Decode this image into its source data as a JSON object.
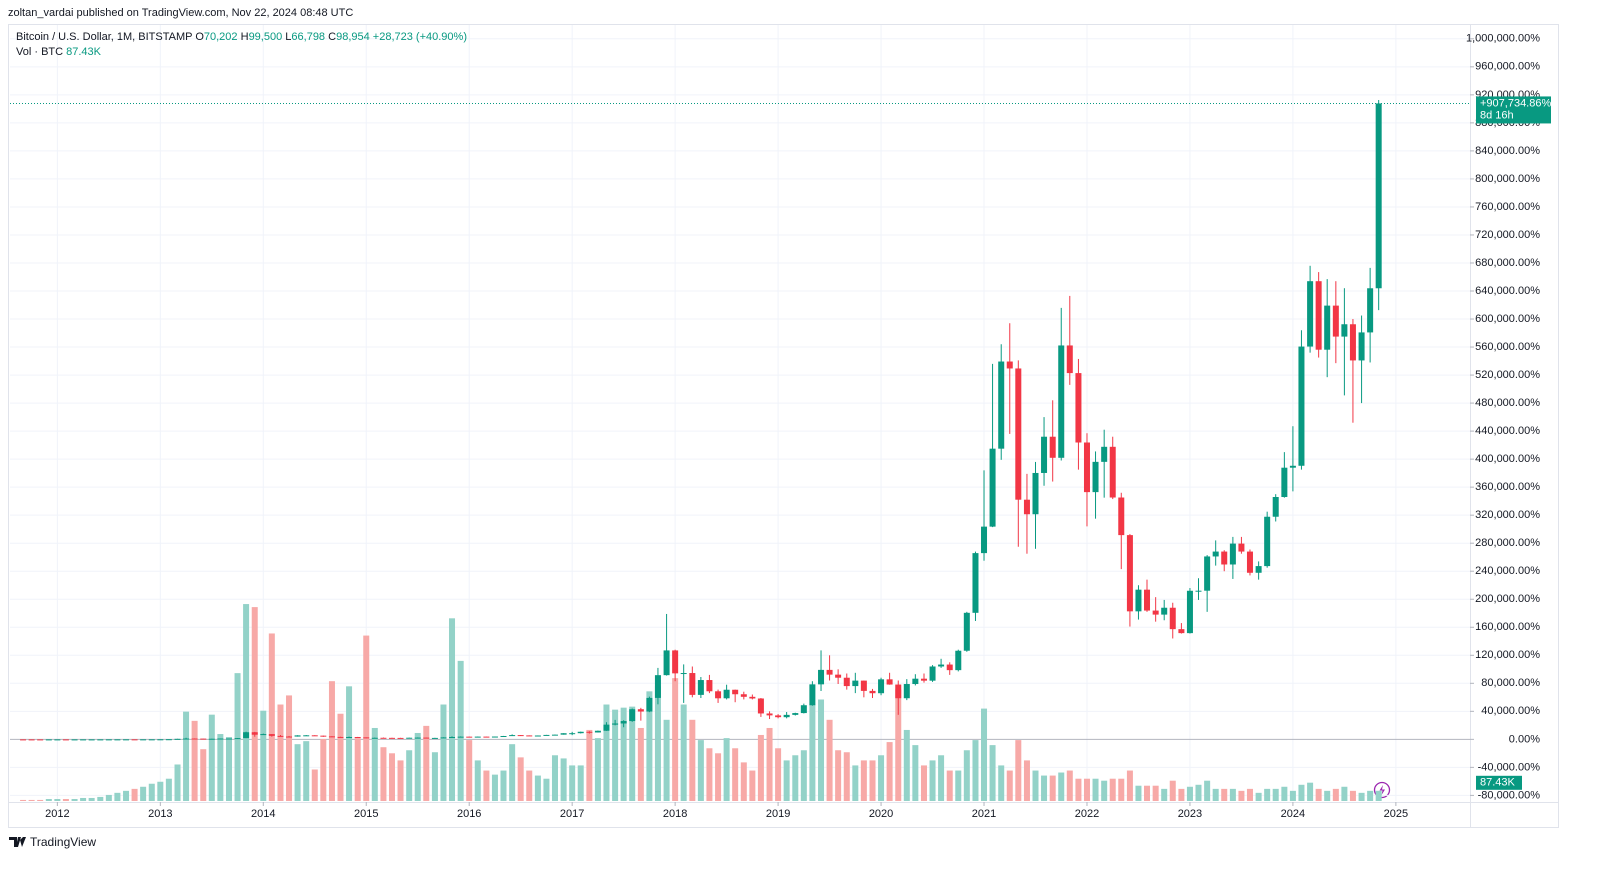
{
  "header": {
    "publisher": "zoltan_vardai published on TradingView.com, Nov 22, 2024 08:48 UTC",
    "symbol": "Bitcoin / U.S. Dollar, 1M, BITSTAMP",
    "ohlc": [
      {
        "key": "O",
        "value": "70,202"
      },
      {
        "key": "H",
        "value": "99,500"
      },
      {
        "key": "L",
        "value": "66,798"
      },
      {
        "key": "C",
        "value": "98,954"
      }
    ],
    "change": "+28,723 (+40.90%)",
    "volume_title": "Vol · BTC",
    "volume_value": "87.43K"
  },
  "footer": {
    "brand": "TradingView"
  },
  "chart_data": {
    "type": "candlestick",
    "up_color": "#089981",
    "down_color": "#f23645",
    "up_volume_color": "#93d2c8",
    "down_volume_color": "#f7a9a7",
    "grid": true,
    "xlim": [
      2011.54,
      2025.72
    ],
    "xticks": [
      2012,
      2013,
      2014,
      2015,
      2016,
      2017,
      2018,
      2019,
      2020,
      2021,
      2022,
      2023,
      2024,
      2025
    ],
    "ylim": [
      -88000,
      1014000
    ],
    "yticks": [
      {
        "value": -80000,
        "label": "-80,000.00%"
      },
      {
        "value": -40000,
        "label": "-40,000.00%"
      },
      {
        "value": 0,
        "label": "0.00%"
      },
      {
        "value": 40000,
        "label": "40,000.00%"
      },
      {
        "value": 80000,
        "label": "80,000.00%"
      },
      {
        "value": 120000,
        "label": "120,000.00%"
      },
      {
        "value": 160000,
        "label": "160,000.00%"
      },
      {
        "value": 200000,
        "label": "200,000.00%"
      },
      {
        "value": 240000,
        "label": "240,000.00%"
      },
      {
        "value": 280000,
        "label": "280,000.00%"
      },
      {
        "value": 320000,
        "label": "320,000.00%"
      },
      {
        "value": 360000,
        "label": "360,000.00%"
      },
      {
        "value": 400000,
        "label": "400,000.00%"
      },
      {
        "value": 440000,
        "label": "440,000.00%"
      },
      {
        "value": 480000,
        "label": "480,000.00%"
      },
      {
        "value": 520000,
        "label": "520,000.00%"
      },
      {
        "value": 560000,
        "label": "560,000.00%"
      },
      {
        "value": 600000,
        "label": "600,000.00%"
      },
      {
        "value": 640000,
        "label": "640,000.00%"
      },
      {
        "value": 680000,
        "label": "680,000.00%"
      },
      {
        "value": 720000,
        "label": "720,000.00%"
      },
      {
        "value": 760000,
        "label": "760,000.00%"
      },
      {
        "value": 800000,
        "label": "800,000.00%"
      },
      {
        "value": 840000,
        "label": "840,000.00%"
      },
      {
        "value": 880000,
        "label": "880,000.00%"
      },
      {
        "value": 920000,
        "label": "920,000.00%"
      },
      {
        "value": 960000,
        "label": "960,000.00%"
      },
      {
        "value": 1000000,
        "label": "1,000,000.00%"
      }
    ],
    "volume_ylim": [
      0,
      1800
    ],
    "last_close_label": "+907,734.86%",
    "countdown": "8d 16h",
    "last_volume_label": "87.43K",
    "x": [
      2011.667,
      2011.75,
      2011.833,
      2011.917,
      2012,
      2012.083,
      2012.167,
      2012.25,
      2012.333,
      2012.417,
      2012.5,
      2012.583,
      2012.667,
      2012.75,
      2012.833,
      2012.917,
      2013,
      2013.083,
      2013.167,
      2013.25,
      2013.333,
      2013.417,
      2013.5,
      2013.583,
      2013.667,
      2013.75,
      2013.833,
      2013.917,
      2014,
      2014.083,
      2014.167,
      2014.25,
      2014.333,
      2014.417,
      2014.5,
      2014.583,
      2014.667,
      2014.75,
      2014.833,
      2014.917,
      2015,
      2015.083,
      2015.167,
      2015.25,
      2015.333,
      2015.417,
      2015.5,
      2015.583,
      2015.667,
      2015.75,
      2015.833,
      2015.917,
      2016,
      2016.083,
      2016.167,
      2016.25,
      2016.333,
      2016.417,
      2016.5,
      2016.583,
      2016.667,
      2016.75,
      2016.833,
      2016.917,
      2017,
      2017.083,
      2017.167,
      2017.25,
      2017.333,
      2017.417,
      2017.5,
      2017.583,
      2017.667,
      2017.75,
      2017.833,
      2017.917,
      2018,
      2018.083,
      2018.167,
      2018.25,
      2018.333,
      2018.417,
      2018.5,
      2018.583,
      2018.667,
      2018.75,
      2018.833,
      2018.917,
      2019,
      2019.083,
      2019.167,
      2019.25,
      2019.333,
      2019.417,
      2019.5,
      2019.583,
      2019.667,
      2019.75,
      2019.833,
      2019.917,
      2020,
      2020.083,
      2020.167,
      2020.25,
      2020.333,
      2020.417,
      2020.5,
      2020.583,
      2020.667,
      2020.75,
      2020.833,
      2020.917,
      2021,
      2021.083,
      2021.167,
      2021.25,
      2021.333,
      2021.417,
      2021.5,
      2021.583,
      2021.667,
      2021.75,
      2021.833,
      2021.917,
      2022,
      2022.083,
      2022.167,
      2022.25,
      2022.333,
      2022.417,
      2022.5,
      2022.583,
      2022.667,
      2022.75,
      2022.833,
      2022.917,
      2023,
      2023.083,
      2023.167,
      2023.25,
      2023.333,
      2023.417,
      2023.5,
      2023.583,
      2023.667,
      2023.75,
      2023.833,
      2023.917,
      2024,
      2024.083,
      2024.167,
      2024.25,
      2024.333,
      2024.417,
      2024.5,
      2024.583,
      2024.667,
      2024.75,
      2024.833
    ],
    "open": [
      -50,
      -53,
      -71,
      -72,
      -57,
      -50,
      -55,
      -55,
      -54,
      -52,
      -39,
      -14,
      -6,
      14,
      3,
      16,
      24,
      87,
      206,
      753,
      1175,
      1083,
      790,
      872,
      1194,
      1194,
      1771,
      10175,
      6615,
      7514,
      4946,
      4028,
      3982,
      5680,
      5771,
      5267,
      4304,
      3432,
      3001,
      3368,
      2836,
      1891,
      2239,
      2138,
      2065,
      2010,
      2322,
      2515,
      2010,
      2065,
      2781,
      3359,
      3845,
      3276,
      3909,
      3716,
      4010,
      4771,
      6074,
      5625,
      5175,
      5487,
      6322,
      6707,
      8744,
      8799,
      10817,
      9808,
      12285,
      21000,
      22652,
      26138,
      43018,
      39715,
      59164,
      91640,
      126960,
      94209,
      94667,
      63476,
      84668,
      68613,
      58614,
      70815,
      64393,
      60724,
      58338,
      36963,
      34211,
      31642,
      34945,
      37513,
      48706,
      78521,
      99163,
      92374,
      87970,
      76044,
      83842,
      69164,
      65861,
      85677,
      78246,
      58705,
      78980,
      86594,
      83750,
      104025,
      106777,
      98795,
      126501,
      180628,
      265854,
      303651,
      414932,
      539331,
      529423,
      342090,
      321357,
      380254,
      431995,
      401905,
      562266,
      522818,
      423739,
      352915,
      396125,
      417592,
      345209,
      291541,
      182738,
      213654,
      183839,
      178059,
      187875,
      157326,
      151638,
      212095,
      212187,
      261084,
      268056,
      249617,
      279432,
      268056,
      237782,
      247323,
      317779,
      345943,
      387776,
      390528,
      560707,
      654006,
      556211,
      619145,
      574926,
      592540,
      540891,
      580889,
      643913
    ],
    "high": [
      -10,
      -40,
      -65,
      -50,
      -35,
      -45,
      -48,
      -51,
      -50,
      -37,
      -5,
      41,
      18,
      18,
      17,
      26,
      88,
      246,
      765,
      2250,
      1370,
      1080,
      920,
      1260,
      1270,
      1870,
      10950,
      10700,
      8200,
      7400,
      6200,
      4850,
      5900,
      6100,
      5900,
      5400,
      4500,
      3700,
      4000,
      3500,
      2800,
      2500,
      2600,
      2300,
      2200,
      2400,
      2800,
      2600,
      2200,
      2950,
      4300,
      4200,
      4000,
      4000,
      3950,
      4100,
      4900,
      7100,
      6200,
      5700,
      5600,
      6400,
      6900,
      8800,
      10700,
      11000,
      11600,
      12600,
      24500,
      27800,
      27300,
      44000,
      45000,
      61000,
      102000,
      179000,
      128000,
      107000,
      104000,
      89000,
      92000,
      71000,
      78000,
      71000,
      68000,
      64000,
      59000,
      40000,
      36000,
      39000,
      38000,
      51000,
      83000,
      127000,
      120000,
      100000,
      94000,
      95000,
      84000,
      72000,
      88000,
      95000,
      84000,
      86000,
      93000,
      94000,
      106000,
      115000,
      110000,
      128000,
      182000,
      268000,
      384000,
      536000,
      564000,
      594000,
      541000,
      379000,
      396000,
      460000,
      484000,
      616000,
      633000,
      543000,
      437000,
      411000,
      442000,
      432000,
      352000,
      293000,
      220000,
      228000,
      203000,
      199000,
      195000,
      166000,
      216000,
      230000,
      263000,
      284000,
      270000,
      289000,
      289000,
      271000,
      254000,
      325000,
      350000,
      410000,
      447000,
      584000,
      676000,
      667000,
      657000,
      654000,
      644000,
      600000,
      605000,
      673000,
      912713
    ],
    "low": [
      -75,
      -78,
      -80,
      -73,
      -60,
      -64,
      -57,
      -56,
      -55,
      -53,
      -40,
      -28,
      -8,
      -10,
      0,
      11,
      22,
      80,
      200,
      400,
      700,
      700,
      550,
      850,
      1070,
      750,
      1730,
      3750,
      6600,
      3800,
      3900,
      3000,
      3900,
      5000,
      5100,
      3600,
      3300,
      2500,
      2900,
      2700,
      1400,
      1800,
      1900,
      1900,
      1900,
      1900,
      2200,
      1500,
      1900,
      2000,
      2750,
      3200,
      3000,
      3100,
      3500,
      3700,
      3900,
      4800,
      5000,
      4900,
      5100,
      5500,
      6200,
      6700,
      6000,
      8400,
      8300,
      9700,
      12100,
      20000,
      17300,
      25000,
      26700,
      38800,
      50000,
      91000,
      83000,
      52000,
      60000,
      59000,
      66000,
      52000,
      57000,
      53000,
      57000,
      57000,
      32000,
      29000,
      30000,
      30000,
      34000,
      37000,
      48000,
      69000,
      84000,
      79000,
      71000,
      66000,
      60000,
      59000,
      63000,
      78000,
      35000,
      56000,
      77000,
      81000,
      82000,
      102000,
      92000,
      97000,
      125000,
      169000,
      255000,
      303000,
      399000,
      436000,
      275000,
      265000,
      272000,
      362000,
      368000,
      398000,
      506000,
      385000,
      304000,
      315000,
      345000,
      343000,
      243000,
      161000,
      171000,
      182000,
      168000,
      170000,
      144000,
      151000,
      151000,
      199000,
      182000,
      248000,
      240000,
      229000,
      265000,
      234000,
      228000,
      245000,
      311000,
      345000,
      354000,
      385000,
      552000,
      545000,
      517000,
      537000,
      491000,
      452000,
      480000,
      538000,
      612705
    ],
    "close": [
      -53,
      -71,
      -72,
      -57,
      -50,
      -55,
      -55,
      -54,
      -52,
      -39,
      -14,
      -6,
      14,
      3,
      16,
      24,
      87,
      206,
      753,
      1175,
      1083,
      790,
      872,
      1194,
      1194,
      1771,
      10175,
      6615,
      7514,
      4946,
      4028,
      3982,
      5680,
      5771,
      5267,
      4304,
      3432,
      3001,
      3368,
      2836,
      1891,
      2239,
      2138,
      2065,
      2010,
      2322,
      2515,
      2010,
      2065,
      2781,
      3359,
      3845,
      3276,
      3909,
      3716,
      4010,
      4771,
      6074,
      5625,
      5175,
      5487,
      6322,
      6707,
      8744,
      8799,
      10817,
      9808,
      12285,
      21000,
      22652,
      26138,
      43018,
      39715,
      59164,
      91640,
      126960,
      94209,
      94667,
      63476,
      84668,
      68613,
      58614,
      70815,
      64393,
      60724,
      58338,
      36963,
      34211,
      31642,
      34945,
      37513,
      48706,
      78521,
      99163,
      92374,
      87970,
      76044,
      83842,
      69164,
      65861,
      85677,
      78246,
      58705,
      78980,
      86594,
      83750,
      104025,
      106777,
      98795,
      126501,
      180628,
      265854,
      303651,
      414932,
      539331,
      529423,
      342090,
      321357,
      380254,
      431995,
      401905,
      562266,
      522818,
      423739,
      352915,
      396125,
      417592,
      345209,
      291541,
      182738,
      213654,
      183839,
      178059,
      187875,
      157326,
      151638,
      212095,
      212187,
      261084,
      268056,
      249617,
      279432,
      268056,
      237782,
      247323,
      317779,
      345943,
      387776,
      390528,
      560707,
      654006,
      556211,
      619145,
      574926,
      592540,
      540891,
      580889,
      643913,
      907734.86
    ],
    "volume": [
      9,
      9,
      9,
      17,
      17,
      17,
      17,
      26,
      26,
      35,
      52,
      70,
      87,
      104,
      122,
      148,
      165,
      191,
      313,
      766,
      687,
      444,
      740,
      574,
      548,
      1096,
      1688,
      1662,
      774,
      1436,
      827,
      905,
      487,
      513,
      270,
      531,
      1027,
      748,
      983,
      539,
      1418,
      626,
      461,
      409,
      348,
      435,
      583,
      644,
      418,
      827,
      1566,
      1201,
      522,
      348,
      261,
      226,
      261,
      487,
      374,
      261,
      218,
      191,
      392,
      365,
      305,
      305,
      609,
      539,
      827,
      783,
      800,
      809,
      626,
      940,
      983,
      696,
      1053,
      827,
      696,
      522,
      452,
      409,
      539,
      452,
      331,
      261,
      566,
      626,
      452,
      348,
      392,
      435,
      827,
      870,
      696,
      435,
      418,
      305,
      348,
      348,
      392,
      505,
      957,
      609,
      479,
      305,
      348,
      392,
      261,
      261,
      435,
      522,
      792,
      479,
      305,
      261,
      522,
      348,
      261,
      218,
      218,
      244,
      261,
      191,
      191,
      191,
      174,
      191,
      191,
      261,
      131,
      131,
      131,
      104,
      174,
      104,
      122,
      139,
      174,
      104,
      104,
      104,
      87,
      104,
      70,
      104,
      104,
      122,
      87,
      139,
      157,
      104,
      87,
      104,
      122,
      87,
      70,
      87,
      87.43
    ]
  }
}
